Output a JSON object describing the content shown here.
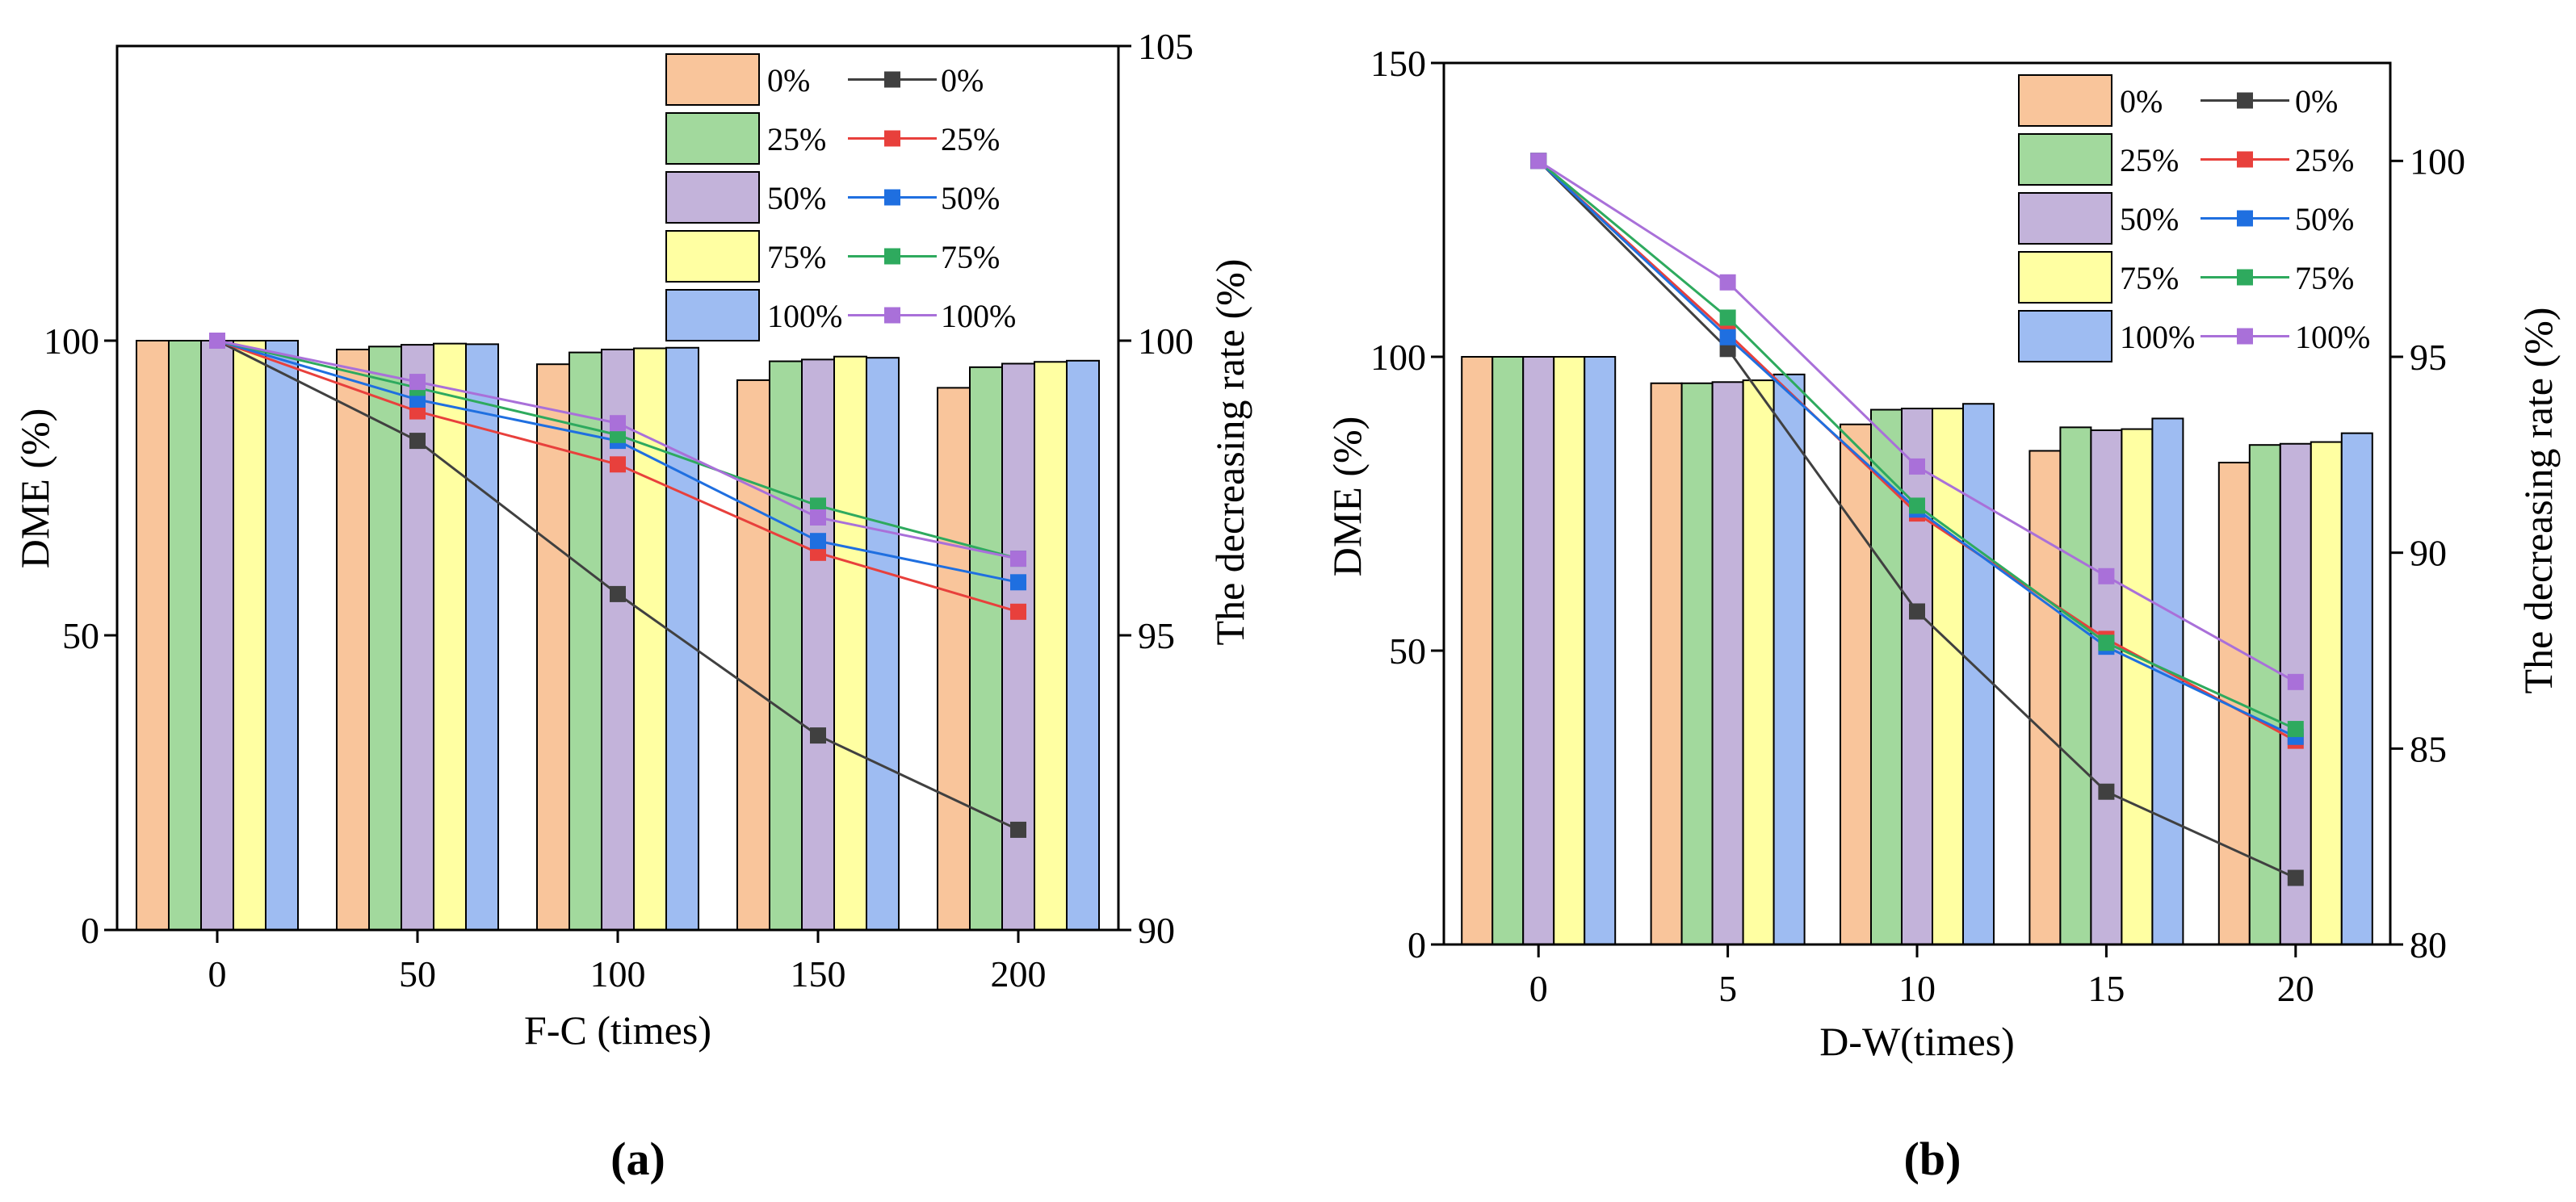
{
  "figure": {
    "panels": [
      "(a)",
      "(b)"
    ]
  },
  "chart_data": [
    {
      "panel_label": "a",
      "type": "bar+line",
      "xlabel": "F-C (times)",
      "ylabel": "DME (%)",
      "y2label": "The decreasing rate (%)",
      "categories": [
        "0",
        "50",
        "100",
        "150",
        "200"
      ],
      "ylim": [
        0,
        150
      ],
      "yticks": [
        0,
        50,
        100
      ],
      "y2lim": [
        90,
        105
      ],
      "y2ticks": [
        90,
        95,
        100,
        105
      ],
      "bar_series": [
        {
          "name": "0%",
          "color": "#F9C59B",
          "values": [
            100.0,
            98.5,
            96.0,
            93.3,
            92.0
          ]
        },
        {
          "name": "25%",
          "color": "#A2D99D",
          "values": [
            100.0,
            99.0,
            98.0,
            96.5,
            95.5
          ]
        },
        {
          "name": "50%",
          "color": "#C3B3DA",
          "values": [
            100.0,
            99.3,
            98.5,
            96.8,
            96.1
          ]
        },
        {
          "name": "75%",
          "color": "#FFFFA2",
          "values": [
            100.0,
            99.5,
            98.7,
            97.3,
            96.4
          ]
        },
        {
          "name": "100%",
          "color": "#9EBCF2",
          "values": [
            100.0,
            99.4,
            98.8,
            97.1,
            96.6
          ]
        }
      ],
      "line_series": [
        {
          "name": "0%",
          "color": "#404040",
          "values": [
            100.0,
            98.3,
            95.7,
            93.3,
            91.7
          ]
        },
        {
          "name": "25%",
          "color": "#E8403C",
          "values": [
            100.0,
            98.8,
            97.9,
            96.4,
            95.4
          ]
        },
        {
          "name": "50%",
          "color": "#1F6FE0",
          "values": [
            100.0,
            99.0,
            98.3,
            96.6,
            95.9
          ]
        },
        {
          "name": "75%",
          "color": "#2EAA5E",
          "values": [
            100.0,
            99.2,
            98.4,
            97.2,
            96.3
          ]
        },
        {
          "name": "100%",
          "color": "#A970D9",
          "values": [
            100.0,
            99.3,
            98.6,
            97.0,
            96.3
          ]
        }
      ]
    },
    {
      "panel_label": "b",
      "type": "bar+line",
      "xlabel": "D-W(times)",
      "ylabel": "DME (%)",
      "y2label": "The decreasing rate (%)",
      "categories": [
        "0",
        "5",
        "10",
        "15",
        "20"
      ],
      "ylim": [
        0,
        150
      ],
      "yticks": [
        0,
        50,
        100,
        150
      ],
      "y2lim": [
        80,
        102.5
      ],
      "y2ticks": [
        80,
        85,
        90,
        95,
        100
      ],
      "bar_series": [
        {
          "name": "0%",
          "color": "#F9C59B",
          "values": [
            100.0,
            95.5,
            88.5,
            84.0,
            82.0
          ]
        },
        {
          "name": "25%",
          "color": "#A2D99D",
          "values": [
            100.0,
            95.5,
            91.0,
            88.0,
            85.0
          ]
        },
        {
          "name": "50%",
          "color": "#C3B3DA",
          "values": [
            100.0,
            95.7,
            91.2,
            87.5,
            85.2
          ]
        },
        {
          "name": "75%",
          "color": "#FFFFA2",
          "values": [
            100.0,
            96.0,
            91.2,
            87.7,
            85.5
          ]
        },
        {
          "name": "100%",
          "color": "#9EBCF2",
          "values": [
            100.0,
            97.0,
            92.0,
            89.5,
            87.0
          ]
        }
      ],
      "line_series": [
        {
          "name": "0%",
          "color": "#404040",
          "values": [
            100.0,
            95.2,
            88.5,
            83.9,
            81.7
          ]
        },
        {
          "name": "25%",
          "color": "#E8403C",
          "values": [
            100.0,
            95.6,
            91.0,
            87.8,
            85.2
          ]
        },
        {
          "name": "50%",
          "color": "#1F6FE0",
          "values": [
            100.0,
            95.5,
            91.1,
            87.6,
            85.3
          ]
        },
        {
          "name": "75%",
          "color": "#2EAA5E",
          "values": [
            100.0,
            96.0,
            91.2,
            87.7,
            85.5
          ]
        },
        {
          "name": "100%",
          "color": "#A970D9",
          "values": [
            100.0,
            96.9,
            92.2,
            89.4,
            86.7
          ]
        }
      ]
    }
  ]
}
